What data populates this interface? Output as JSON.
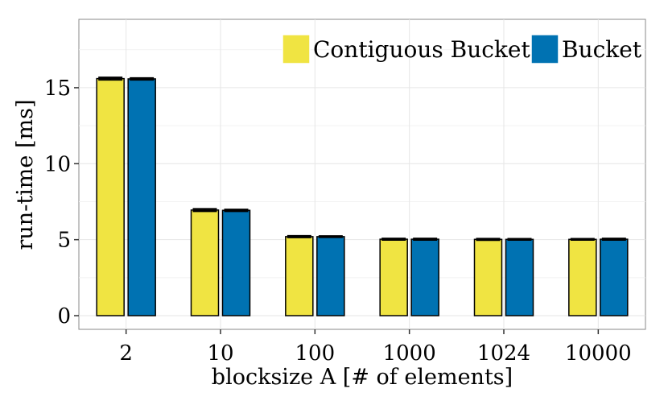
{
  "chart_data": {
    "type": "bar",
    "xlabel": "blocksize A [# of elements]",
    "ylabel": "run-time [ms]",
    "categories": [
      "2",
      "10",
      "100",
      "1000",
      "1024",
      "10000"
    ],
    "series": [
      {
        "name": "Contiguous Bucket",
        "color": "#F0E442",
        "values": [
          15.6,
          6.95,
          5.2,
          5.03,
          5.02,
          5.02
        ],
        "error": [
          0.08,
          0.08,
          0.05,
          0.05,
          0.05,
          0.04
        ]
      },
      {
        "name": "Bucket",
        "color": "#0072B2",
        "values": [
          15.58,
          6.93,
          5.2,
          5.03,
          5.02,
          5.03
        ],
        "error": [
          0.06,
          0.06,
          0.04,
          0.05,
          0.04,
          0.05
        ]
      }
    ],
    "ylim": [
      -0.9,
      19.5
    ],
    "yticks": [
      0,
      5,
      10,
      15
    ],
    "grid": true,
    "legend_position": "top-right"
  }
}
